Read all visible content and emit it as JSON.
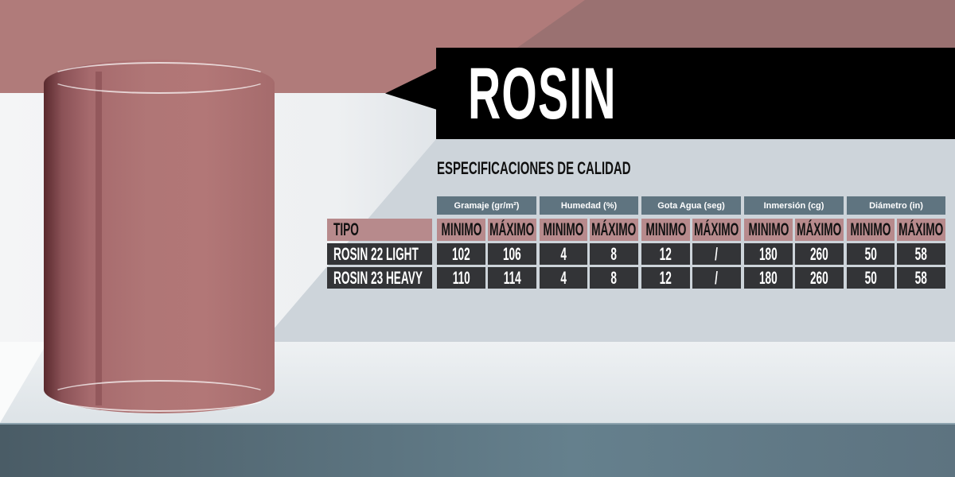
{
  "title": "ROSIN",
  "subtitle": "ESPECIFICACIONES DE CALIDAD",
  "colors": {
    "header_group": "#5f7480",
    "header_row": "#b78a8c",
    "data_row": "#333437",
    "banner": "#000000",
    "accent_pink": "#b07b7a"
  },
  "table": {
    "type_header": "TIPO",
    "groups": [
      "Gramaje (gr/m²)",
      "Humedad (%)",
      "Gota Agua (seg)",
      "Inmersión (cg)",
      "Diámetro (in)"
    ],
    "subheaders": [
      "MINIMO",
      "MÁXIMO"
    ],
    "rows": [
      {
        "type": "ROSIN 22 LIGHT",
        "values": [
          "102",
          "106",
          "4",
          "8",
          "12",
          "/",
          "180",
          "260",
          "50",
          "58"
        ]
      },
      {
        "type": "ROSIN 23 HEAVY",
        "values": [
          "110",
          "114",
          "4",
          "8",
          "12",
          "/",
          "180",
          "260",
          "50",
          "58"
        ]
      }
    ]
  }
}
